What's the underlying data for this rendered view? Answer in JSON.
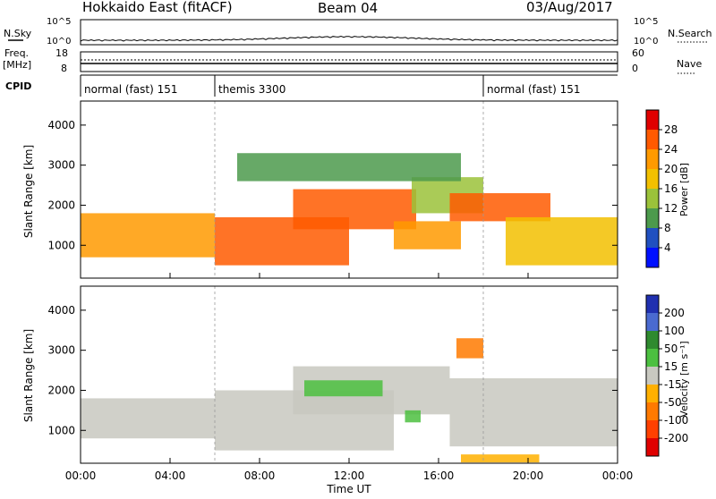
{
  "header": {
    "station": "Hokkaido East (fitACF)",
    "beam": "Beam 04",
    "date": "03/Aug/2017"
  },
  "left_labels": {
    "nsky": "N.Sky",
    "freq_a": "Freq.",
    "freq_b": "[MHz]",
    "cpid": "CPID"
  },
  "right_labels": {
    "nsearch": "N.Search",
    "nave": "Nave"
  },
  "small_axes": {
    "noise_ticks": [
      "10^5",
      "10^0"
    ],
    "freq_ticks": [
      "18",
      "8"
    ],
    "nave_ticks": [
      "60",
      "0"
    ]
  },
  "cpid_segments": [
    {
      "label": "normal (fast) 151",
      "start_h": 0,
      "end_h": 6.0
    },
    {
      "label": "themis 3300",
      "start_h": 6.0,
      "end_h": 18.0
    },
    {
      "label": "normal (fast) 151",
      "start_h": 18.0,
      "end_h": 24.0
    }
  ],
  "axes": {
    "y_label": "Slant Range [km]",
    "x_label": "Time UT",
    "y_ticks": [
      "1000",
      "2000",
      "3000",
      "4000"
    ],
    "x_ticks": [
      "00:00",
      "04:00",
      "08:00",
      "12:00",
      "16:00",
      "20:00",
      "00:00"
    ]
  },
  "power_bar": {
    "title": "Power [dB]",
    "ticks": [
      "28",
      "24",
      "20",
      "16",
      "12",
      "8",
      "4"
    ],
    "colors": [
      "#e00000",
      "#ff5a00",
      "#ff9a00",
      "#f2c000",
      "#9bc23a",
      "#4c9a4c",
      "#2050c0",
      "#0010ff"
    ]
  },
  "velocity_bar": {
    "title": "Velocity [m s⁻¹]",
    "ticks": [
      "200",
      "100",
      "50",
      "15",
      "-15",
      "-50",
      "-100",
      "-200"
    ],
    "colors": [
      "#2030b0",
      "#4a6ad0",
      "#2f8a2f",
      "#4cc040",
      "#c8c8c0",
      "#ffb000",
      "#ff7a00",
      "#ff4000",
      "#e00000"
    ]
  },
  "chart_data": [
    {
      "type": "heatmap",
      "title": "Power [dB]",
      "xlabel": "Time UT",
      "ylabel": "Slant Range [km]",
      "xlim_hours": [
        0,
        24
      ],
      "ylim": [
        180,
        4600
      ],
      "region_blobs": [
        {
          "t0": 0.0,
          "t1": 6.0,
          "r0": 700,
          "r1": 1800,
          "value": 22
        },
        {
          "t0": 6.0,
          "t1": 12.0,
          "r0": 500,
          "r1": 1700,
          "value": 28
        },
        {
          "t0": 9.5,
          "t1": 15.0,
          "r0": 1400,
          "r1": 2400,
          "value": 28
        },
        {
          "t0": 14.0,
          "t1": 17.0,
          "r0": 900,
          "r1": 1600,
          "value": 24
        },
        {
          "t0": 14.8,
          "t1": 18.0,
          "r0": 1800,
          "r1": 2700,
          "value": 14
        },
        {
          "t0": 16.5,
          "t1": 21.0,
          "r0": 1600,
          "r1": 2300,
          "value": 28
        },
        {
          "t0": 19.0,
          "t1": 24.0,
          "r0": 500,
          "r1": 1700,
          "value": 20
        },
        {
          "t0": 7.0,
          "t1": 17.0,
          "r0": 2600,
          "r1": 3300,
          "value": 12
        }
      ]
    },
    {
      "type": "heatmap",
      "title": "Velocity [m s⁻¹]",
      "xlabel": "Time UT",
      "ylabel": "Slant Range [km]",
      "xlim_hours": [
        0,
        24
      ],
      "ylim": [
        180,
        4600
      ],
      "region_blobs": [
        {
          "t0": 0.0,
          "t1": 6.0,
          "r0": 800,
          "r1": 1800,
          "value": 0
        },
        {
          "t0": 6.0,
          "t1": 14.0,
          "r0": 500,
          "r1": 2000,
          "value": 0
        },
        {
          "t0": 9.5,
          "t1": 16.5,
          "r0": 1400,
          "r1": 2600,
          "value": 0
        },
        {
          "t0": 10.0,
          "t1": 13.5,
          "r0": 1850,
          "r1": 2250,
          "value": 30
        },
        {
          "t0": 14.5,
          "t1": 15.2,
          "r0": 1200,
          "r1": 1500,
          "value": 30
        },
        {
          "t0": 16.5,
          "t1": 24.0,
          "r0": 600,
          "r1": 2300,
          "value": 0
        },
        {
          "t0": 16.8,
          "t1": 18.0,
          "r0": 2800,
          "r1": 3300,
          "value": -70
        },
        {
          "t0": 17.0,
          "t1": 20.5,
          "r0": 200,
          "r1": 400,
          "value": -30
        }
      ]
    }
  ]
}
